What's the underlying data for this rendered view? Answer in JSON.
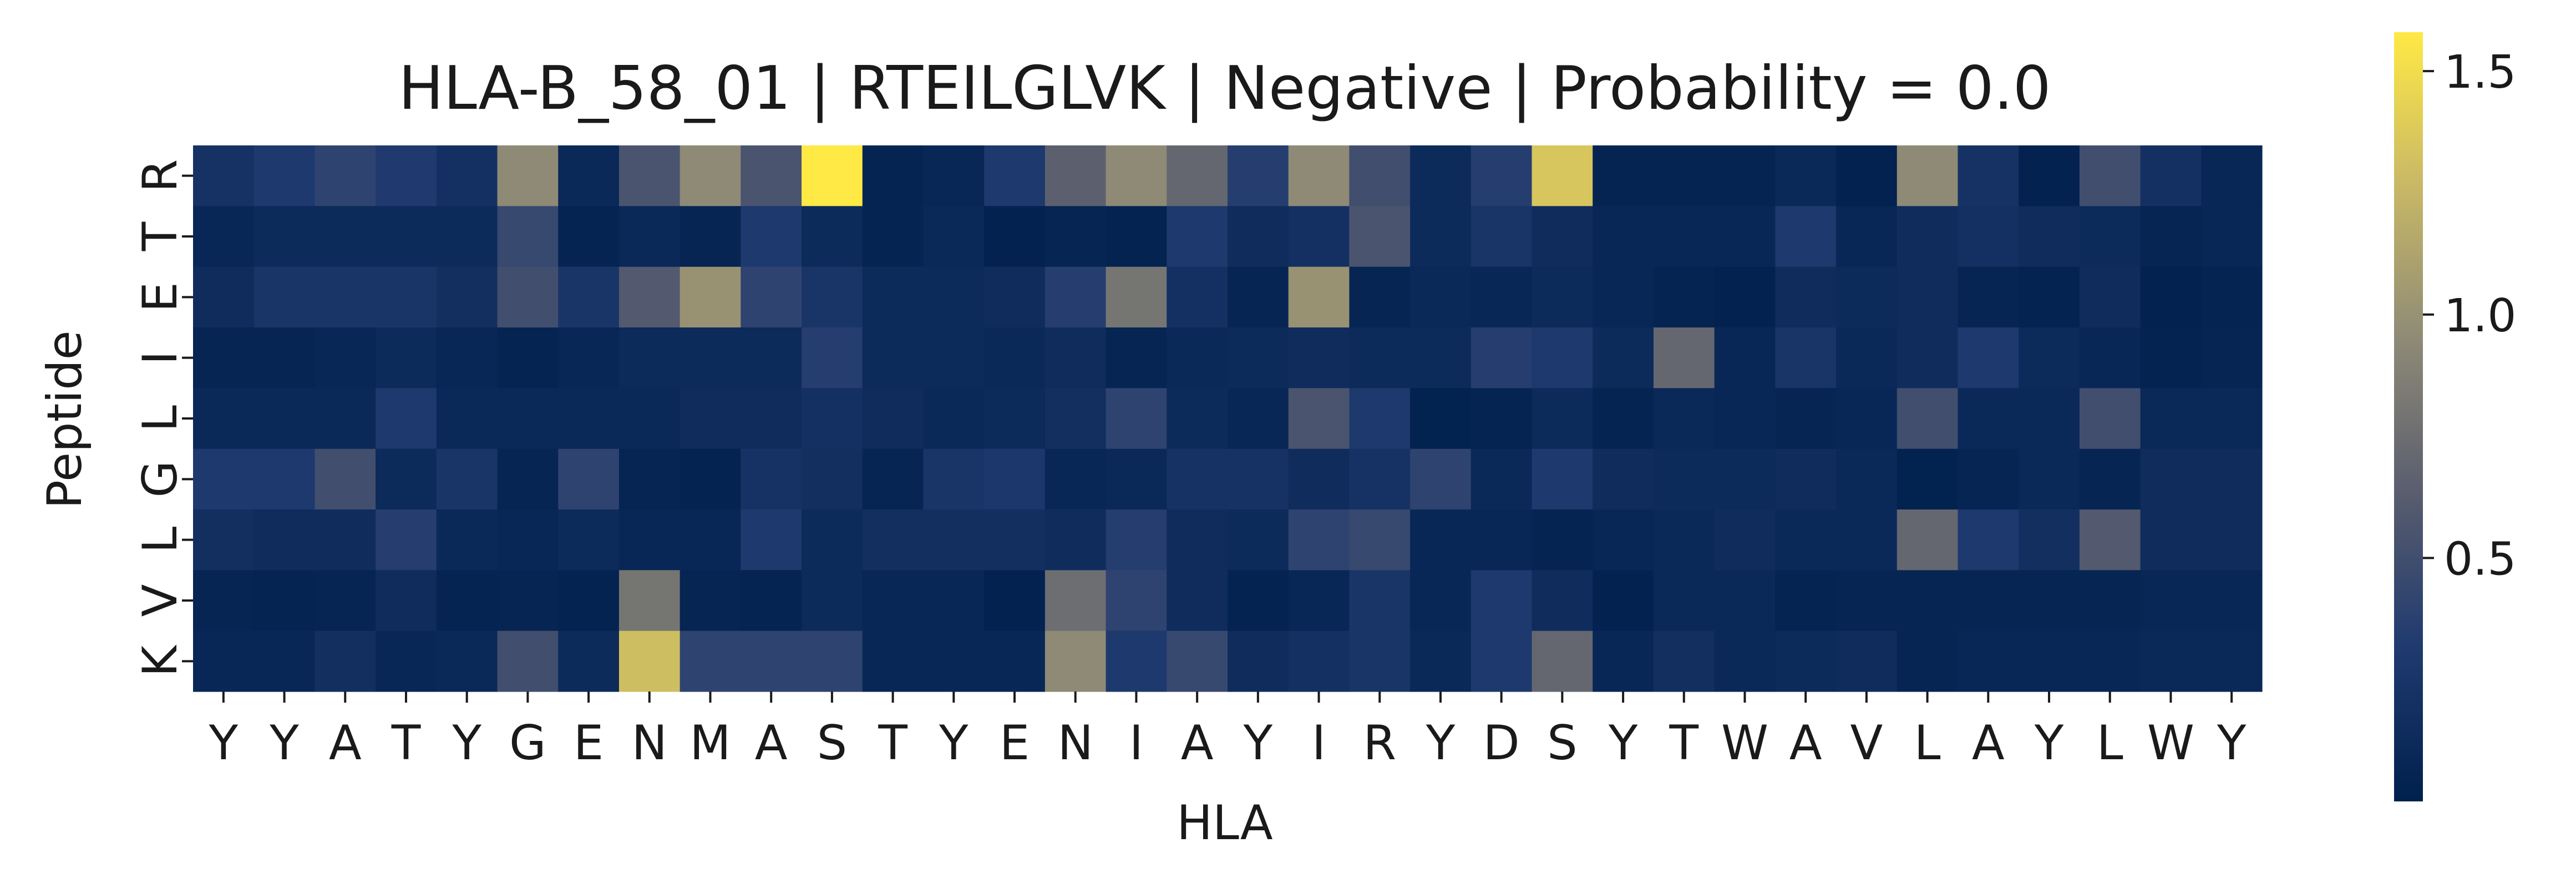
{
  "chart_data": {
    "type": "heatmap",
    "title": "HLA-B_58_01 | RTEILGLVK | Negative | Probability = 0.0",
    "xlabel": "HLA",
    "ylabel": "Peptide",
    "x_categories": [
      "Y",
      "Y",
      "A",
      "T",
      "Y",
      "G",
      "E",
      "N",
      "M",
      "A",
      "S",
      "T",
      "Y",
      "E",
      "N",
      "I",
      "A",
      "Y",
      "I",
      "R",
      "Y",
      "D",
      "S",
      "Y",
      "T",
      "W",
      "A",
      "V",
      "L",
      "A",
      "Y",
      "L",
      "W",
      "Y"
    ],
    "y_categories": [
      "R",
      "T",
      "E",
      "I",
      "L",
      "G",
      "L",
      "V",
      "K"
    ],
    "values": [
      [
        0.22,
        0.3,
        0.4,
        0.32,
        0.2,
        0.95,
        0.1,
        0.55,
        0.95,
        0.55,
        1.58,
        0.05,
        0.08,
        0.3,
        0.65,
        0.95,
        0.7,
        0.35,
        0.95,
        0.5,
        0.12,
        0.35,
        1.35,
        0.05,
        0.05,
        0.05,
        0.1,
        0.03,
        0.95,
        0.22,
        0.03,
        0.5,
        0.2,
        0.08
      ],
      [
        0.08,
        0.12,
        0.12,
        0.12,
        0.12,
        0.45,
        0.05,
        0.1,
        0.06,
        0.3,
        0.12,
        0.05,
        0.1,
        0.03,
        0.06,
        0.04,
        0.3,
        0.15,
        0.2,
        0.55,
        0.12,
        0.25,
        0.15,
        0.08,
        0.08,
        0.08,
        0.3,
        0.08,
        0.15,
        0.2,
        0.15,
        0.12,
        0.06,
        0.08
      ],
      [
        0.15,
        0.25,
        0.25,
        0.25,
        0.18,
        0.5,
        0.25,
        0.6,
        1.0,
        0.4,
        0.25,
        0.12,
        0.12,
        0.15,
        0.35,
        0.8,
        0.2,
        0.06,
        1.0,
        0.06,
        0.1,
        0.08,
        0.12,
        0.08,
        0.05,
        0.03,
        0.15,
        0.12,
        0.15,
        0.06,
        0.04,
        0.15,
        0.03,
        0.05
      ],
      [
        0.06,
        0.06,
        0.08,
        0.12,
        0.08,
        0.05,
        0.08,
        0.12,
        0.12,
        0.12,
        0.35,
        0.12,
        0.12,
        0.1,
        0.15,
        0.06,
        0.1,
        0.12,
        0.15,
        0.12,
        0.12,
        0.35,
        0.3,
        0.12,
        0.7,
        0.08,
        0.25,
        0.1,
        0.15,
        0.3,
        0.12,
        0.08,
        0.04,
        0.06
      ],
      [
        0.1,
        0.1,
        0.1,
        0.3,
        0.1,
        0.1,
        0.1,
        0.1,
        0.15,
        0.15,
        0.2,
        0.15,
        0.1,
        0.12,
        0.18,
        0.4,
        0.12,
        0.08,
        0.55,
        0.3,
        0.02,
        0.05,
        0.12,
        0.05,
        0.1,
        0.08,
        0.06,
        0.08,
        0.5,
        0.1,
        0.1,
        0.5,
        0.1,
        0.1
      ],
      [
        0.3,
        0.3,
        0.5,
        0.12,
        0.25,
        0.06,
        0.4,
        0.06,
        0.04,
        0.22,
        0.18,
        0.06,
        0.25,
        0.28,
        0.08,
        0.1,
        0.22,
        0.22,
        0.15,
        0.22,
        0.4,
        0.1,
        0.3,
        0.15,
        0.12,
        0.12,
        0.15,
        0.1,
        0.02,
        0.06,
        0.1,
        0.06,
        0.15,
        0.15
      ],
      [
        0.18,
        0.15,
        0.15,
        0.35,
        0.1,
        0.08,
        0.12,
        0.08,
        0.08,
        0.3,
        0.12,
        0.18,
        0.18,
        0.18,
        0.15,
        0.35,
        0.15,
        0.12,
        0.4,
        0.45,
        0.08,
        0.08,
        0.05,
        0.08,
        0.1,
        0.15,
        0.1,
        0.1,
        0.7,
        0.3,
        0.18,
        0.6,
        0.15,
        0.15
      ],
      [
        0.06,
        0.05,
        0.06,
        0.15,
        0.05,
        0.06,
        0.04,
        0.8,
        0.06,
        0.05,
        0.12,
        0.08,
        0.08,
        0.03,
        0.75,
        0.4,
        0.15,
        0.04,
        0.08,
        0.25,
        0.08,
        0.3,
        0.15,
        0.03,
        0.1,
        0.1,
        0.05,
        0.06,
        0.06,
        0.06,
        0.06,
        0.06,
        0.08,
        0.08
      ],
      [
        0.08,
        0.08,
        0.18,
        0.08,
        0.1,
        0.5,
        0.12,
        1.3,
        0.4,
        0.4,
        0.4,
        0.08,
        0.08,
        0.08,
        0.95,
        0.3,
        0.45,
        0.15,
        0.2,
        0.25,
        0.1,
        0.3,
        0.7,
        0.08,
        0.18,
        0.1,
        0.12,
        0.15,
        0.06,
        0.08,
        0.08,
        0.08,
        0.1,
        0.1
      ]
    ],
    "colorbar": {
      "vmin": 0.0,
      "vmax": 1.58,
      "ticks": [
        0.5,
        1.0,
        1.5
      ],
      "tick_labels": [
        "0.5",
        "1.0",
        "1.5"
      ],
      "colormap": "cividis",
      "stops": [
        "#00204d",
        "#1f3a6f",
        "#595d6e",
        "#8e8a76",
        "#c8b866",
        "#ffe945"
      ]
    },
    "grid": false,
    "legend": "colorbar-right"
  }
}
